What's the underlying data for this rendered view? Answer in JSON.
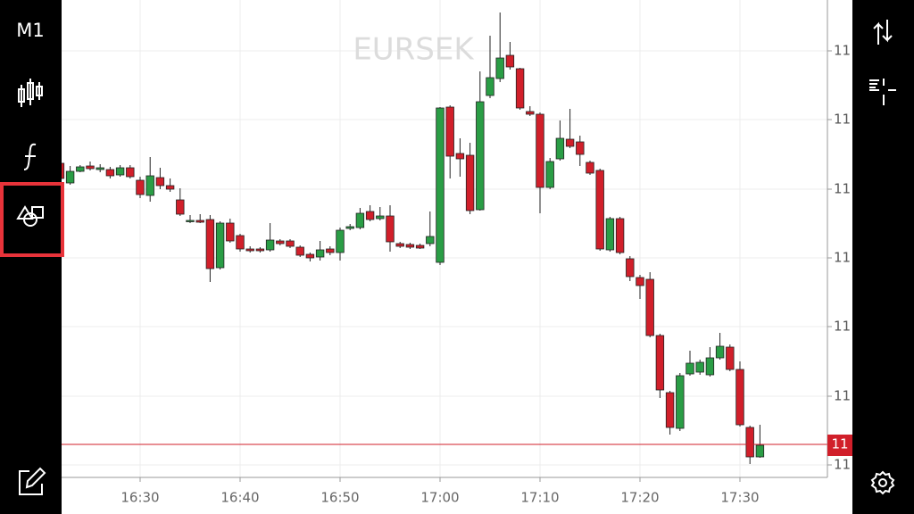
{
  "ui": {
    "timeframe": "M1"
  },
  "chart_data": {
    "type": "candlestick",
    "title": "EURSEK",
    "x": [
      "16:22",
      "16:23",
      "16:24",
      "16:25",
      "16:26",
      "16:27",
      "16:28",
      "16:29",
      "16:30",
      "16:31",
      "16:32",
      "16:33",
      "16:34",
      "16:35",
      "16:36",
      "16:37",
      "16:38",
      "16:39",
      "16:40",
      "16:41",
      "16:42",
      "16:43",
      "16:44",
      "16:45",
      "16:46",
      "16:47",
      "16:48",
      "16:49",
      "16:50",
      "16:51",
      "16:52",
      "16:53",
      "16:54",
      "16:55",
      "16:56",
      "16:57",
      "16:58",
      "16:59",
      "17:00",
      "17:01",
      "17:02",
      "17:03",
      "17:04",
      "17:05",
      "17:06",
      "17:07",
      "17:08",
      "17:09",
      "17:10",
      "17:11",
      "17:12",
      "17:13",
      "17:14",
      "17:15",
      "17:16",
      "17:17",
      "17:18",
      "17:19",
      "17:20",
      "17:21",
      "17:22",
      "17:23",
      "17:24",
      "17:25",
      "17:26",
      "17:27",
      "17:28",
      "17:29",
      "17:30",
      "17:31",
      "17:32"
    ],
    "open": [
      11.0338,
      11.0316,
      11.0329,
      11.0335,
      11.0331,
      11.0331,
      11.0325,
      11.0333,
      11.0319,
      11.0302,
      11.0322,
      11.0313,
      11.0297,
      11.0273,
      11.0274,
      11.0275,
      11.0221,
      11.0271,
      11.0257,
      11.0242,
      11.0242,
      11.0241,
      11.0251,
      11.0251,
      11.0244,
      11.0236,
      11.0233,
      11.0242,
      11.0238,
      11.0265,
      11.0266,
      11.0284,
      11.0276,
      11.0279,
      11.0248,
      11.0247,
      11.0246,
      11.0248,
      11.0227,
      11.0401,
      11.0349,
      11.0347,
      11.0286,
      11.0414,
      11.0433,
      11.0459,
      11.0444,
      11.0396,
      11.0393,
      11.0311,
      11.0343,
      11.0365,
      11.0362,
      11.0339,
      11.033,
      11.0241,
      11.0276,
      11.0231,
      11.021,
      11.0208,
      11.0145,
      11.0081,
      11.0041,
      11.0102,
      11.0104,
      11.0101,
      11.012,
      11.0132,
      11.0107,
      11.0042,
      11.0009
    ],
    "high": [
      11.0341,
      11.0335,
      11.0336,
      11.034,
      11.0337,
      11.0334,
      11.0336,
      11.0336,
      11.0323,
      11.0345,
      11.0333,
      11.0321,
      11.031,
      11.028,
      11.0281,
      11.028,
      11.0273,
      11.0276,
      11.0259,
      11.0245,
      11.0244,
      11.0271,
      11.0253,
      11.0253,
      11.0246,
      11.0238,
      11.0251,
      11.0245,
      11.0266,
      11.027,
      11.0288,
      11.0291,
      11.0289,
      11.0291,
      11.025,
      11.0249,
      11.0248,
      11.0284,
      11.0401,
      11.0403,
      11.0366,
      11.0361,
      11.0441,
      11.0481,
      11.0507,
      11.0474,
      11.0445,
      11.0402,
      11.0395,
      11.0344,
      11.0386,
      11.0399,
      11.0369,
      11.0341,
      11.0332,
      11.0278,
      11.0278,
      11.0234,
      11.0213,
      11.0216,
      11.0147,
      11.0083,
      11.0103,
      11.0128,
      11.0118,
      11.0132,
      11.0148,
      11.0135,
      11.0116,
      11.0044,
      11.0045
    ],
    "low": [
      11.0319,
      11.0314,
      11.0328,
      11.033,
      11.0328,
      11.0321,
      11.0323,
      11.0321,
      11.0299,
      11.0295,
      11.0309,
      11.0306,
      11.0279,
      11.0271,
      11.0271,
      11.0205,
      11.0219,
      11.0249,
      11.0239,
      11.0238,
      11.0238,
      11.0239,
      11.0246,
      11.0243,
      11.0233,
      11.0228,
      11.0229,
      11.0235,
      11.0229,
      11.0263,
      11.0264,
      11.0273,
      11.0274,
      11.0239,
      11.0243,
      11.0242,
      11.0242,
      11.0245,
      11.0224,
      11.0321,
      11.0323,
      11.0281,
      11.0285,
      11.0411,
      11.0429,
      11.0443,
      11.0398,
      11.0391,
      11.0282,
      11.0309,
      11.0341,
      11.0355,
      11.0335,
      11.0325,
      11.024,
      11.0239,
      11.0236,
      11.0206,
      11.0186,
      11.0143,
      11.0075,
      11.0034,
      11.0038,
      11.01,
      11.0101,
      11.0099,
      11.0118,
      11.0105,
      11.0043,
      11.0001,
      11.0008
    ],
    "close": [
      11.0321,
      11.0329,
      11.0334,
      11.0332,
      11.0333,
      11.0324,
      11.0333,
      11.0323,
      11.0303,
      11.0324,
      11.0313,
      11.0309,
      11.0281,
      11.0274,
      11.0272,
      11.022,
      11.0271,
      11.0251,
      11.0242,
      11.024,
      11.024,
      11.0252,
      11.0248,
      11.0245,
      11.0235,
      11.0232,
      11.0241,
      11.0238,
      11.0263,
      11.0267,
      11.0282,
      11.0275,
      11.0279,
      11.025,
      11.0245,
      11.0244,
      11.0243,
      11.0256,
      11.04,
      11.0346,
      11.0343,
      11.0285,
      11.0407,
      11.0434,
      11.0456,
      11.0446,
      11.04,
      11.0393,
      11.0311,
      11.034,
      11.0366,
      11.0357,
      11.0348,
      11.0327,
      11.0242,
      11.0276,
      11.0238,
      11.0211,
      11.0201,
      11.0145,
      11.0084,
      11.0042,
      11.01,
      11.0114,
      11.0115,
      11.012,
      11.0133,
      11.0107,
      11.0045,
      11.0009,
      11.0022
    ],
    "up_color": "#2a9d45",
    "down_color": "#d11f2a",
    "ylim": [
      10.9986,
      11.0521
    ],
    "yticks": [
      {
        "value": 11.0464,
        "label": "11"
      },
      {
        "value": 11.0387,
        "label": "11"
      },
      {
        "value": 11.0309,
        "label": "11"
      },
      {
        "value": 11.0232,
        "label": "11"
      },
      {
        "value": 11.0155,
        "label": "11"
      },
      {
        "value": 11.0077,
        "label": "11"
      },
      {
        "value": 11.0,
        "label": "11"
      }
    ],
    "xticks": [
      "16:30",
      "16:40",
      "16:50",
      "17:00",
      "17:10",
      "17:20",
      "17:30"
    ],
    "last_price": {
      "value": 11.0023,
      "label": "11"
    },
    "grid": true
  }
}
